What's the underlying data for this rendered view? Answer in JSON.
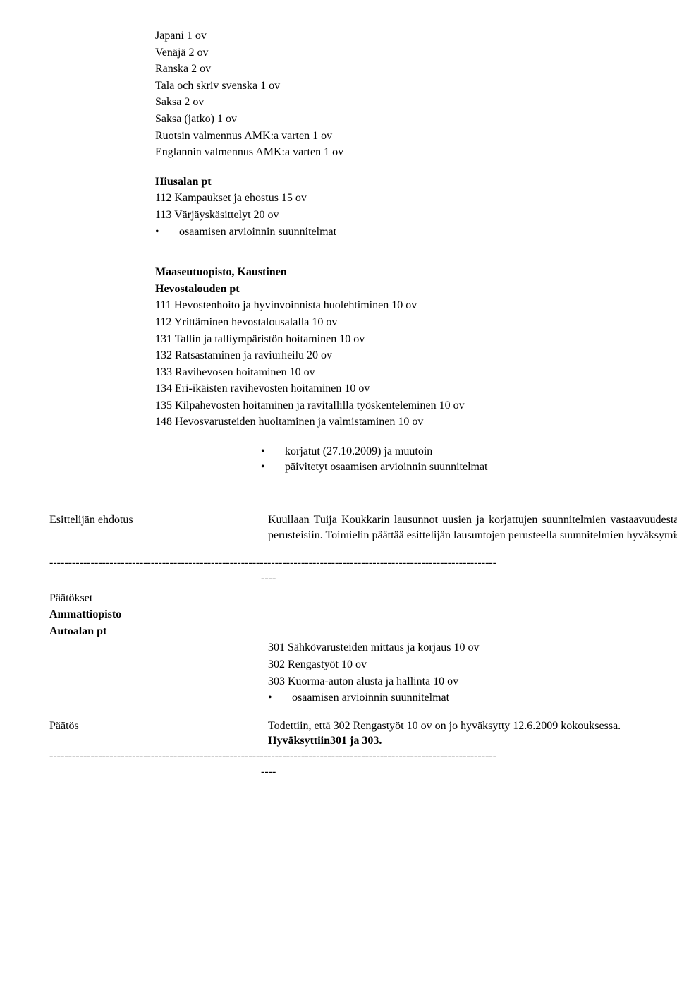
{
  "top_list": [
    "Japani 1 ov",
    "Venäjä 2 ov",
    "Ranska 2 ov",
    "Tala och skriv svenska 1 ov",
    "Saksa 2 ov",
    "Saksa (jatko) 1 ov",
    "Ruotsin valmennus AMK:a varten 1 ov",
    "Englannin valmennus AMK:a varten 1 ov"
  ],
  "hiusalan": {
    "heading": "Hiusalan pt",
    "lines": [
      "112 Kampaukset ja ehostus 15 ov",
      "113 Värjäyskäsittelyt 20 ov"
    ],
    "bullet": "osaamisen arvioinnin suunnitelmat"
  },
  "maaseutu": {
    "heading1": "Maaseutuopisto, Kaustinen",
    "heading2": "Hevostalouden pt",
    "lines": [
      "111 Hevostenhoito ja hyvinvoinnista huolehtiminen 10 ov",
      "112 Yrittäminen hevostalousalalla 10 ov",
      "131 Tallin ja talliympäristön hoitaminen 10 ov",
      "132 Ratsastaminen ja raviurheilu 20 ov",
      "133 Ravihevosen hoitaminen 10 ov",
      "134 Eri-ikäisten ravihevosten hoitaminen 10 ov",
      "135 Kilpahevosten hoitaminen ja ravitallilla työskenteleminen 10 ov",
      "148 Hevosvarusteiden huoltaminen ja valmistaminen 10 ov"
    ],
    "bullets": [
      "korjatut (27.10.2009) ja muutoin",
      "päivitetyt osaamisen arvioinnin suunnitelmat"
    ]
  },
  "esittelija": {
    "label": "Esittelijän ehdotus",
    "text": "Kuullaan Tuija Koukkarin lausunnot uusien ja korjattujen suunnitelmien vastaavuudesta tutkinnon perusteisiin. Toimielin päättää esittelijän lausuntojen perusteella suunnitelmien hyväksymisestä."
  },
  "dashline": "-----------------------------------------------------------------------------------------------------------------------",
  "dash_short": "----",
  "paatokset": {
    "label": "Päätökset",
    "sub1": "Ammattiopisto",
    "sub2": "Autoalan pt",
    "lines": [
      "301 Sähkövarusteiden mittaus ja korjaus 10 ov",
      "302 Rengastyöt  10 ov",
      "303 Kuorma-auton alusta ja hallinta 10 ov"
    ],
    "bullet": "osaamisen arvioinnin suunnitelmat"
  },
  "paatos": {
    "label": "Päätös",
    "text": "Todettiin, että 302 Rengastyöt 10 ov on jo hyväksytty 12.6.2009 kokouksessa.",
    "bold": "Hyväksyttiin301 ja 303."
  },
  "bullet_char": "•"
}
